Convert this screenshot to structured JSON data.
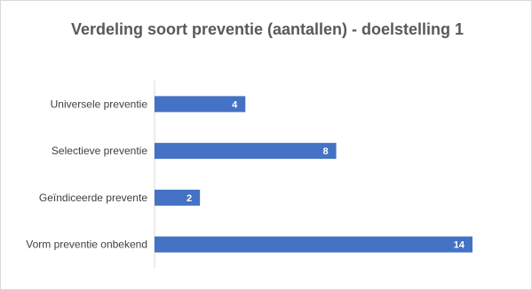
{
  "chart_data": {
    "type": "bar",
    "orientation": "horizontal",
    "title": "Verdeling soort preventie (aantallen) -  doelstelling 1",
    "categories": [
      "Universele preventie",
      "Selectieve preventie",
      "Geïndiceerde prevente",
      "Vorm preventie onbekend"
    ],
    "values": [
      4,
      8,
      2,
      14
    ],
    "xlim": [
      0,
      15
    ],
    "grid": false,
    "legend": "none",
    "colors": {
      "bar": "#4472c4",
      "data_label": "#ffffff",
      "title": "#595959",
      "axis": "#d9d9d9"
    }
  }
}
